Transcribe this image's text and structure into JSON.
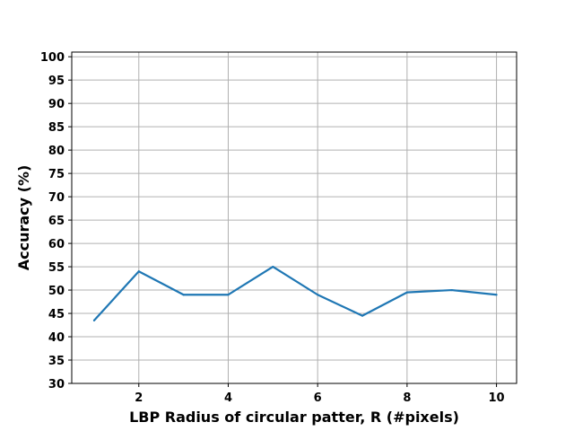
{
  "chart_data": {
    "type": "line",
    "title": "",
    "xlabel": "LBP Radius of circular patter, R (#pixels)",
    "ylabel": "Accuracy (%)",
    "xlim": [
      0.5,
      10.45
    ],
    "ylim": [
      30,
      101
    ],
    "xticks": [
      2,
      4,
      6,
      8,
      10
    ],
    "yticks": [
      30,
      35,
      40,
      45,
      50,
      55,
      60,
      65,
      70,
      75,
      80,
      85,
      90,
      95,
      100
    ],
    "grid": true,
    "series": [
      {
        "color": "#1f77b4",
        "x": [
          1,
          2,
          3,
          4,
          5,
          6,
          7,
          8,
          9,
          10
        ],
        "y": [
          43.5,
          54,
          49,
          49,
          55,
          49,
          44.5,
          49.5,
          50,
          49
        ]
      }
    ]
  }
}
